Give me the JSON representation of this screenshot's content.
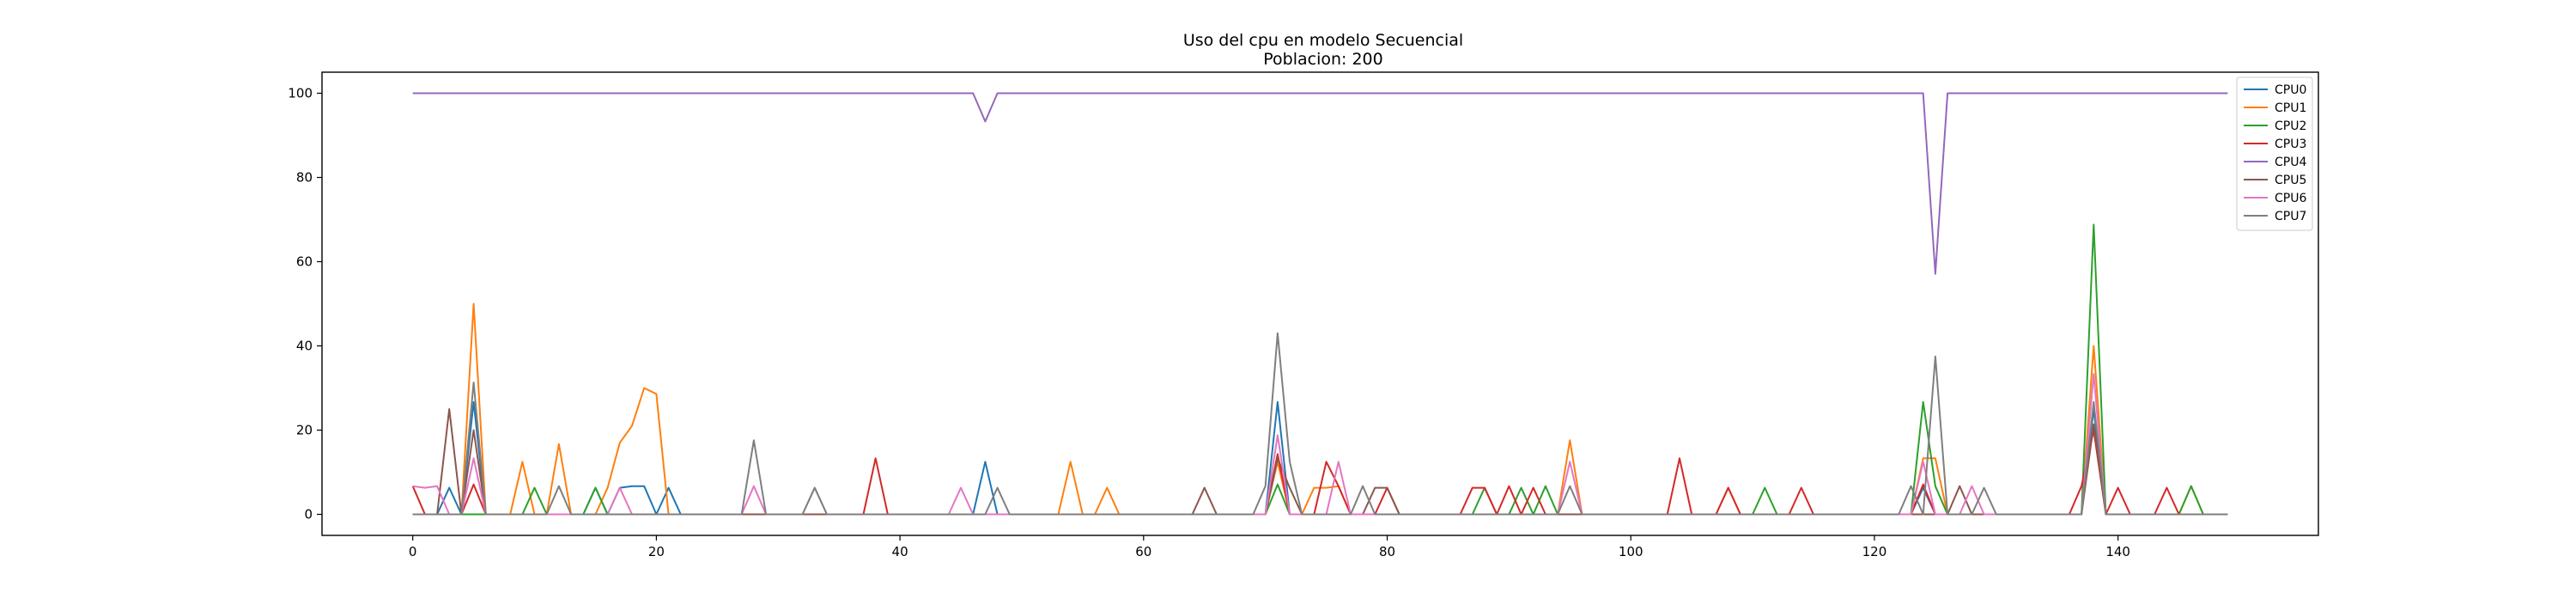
{
  "chart_data": {
    "type": "line",
    "title": "Uso del cpu en modelo Secuencial",
    "subtitle": "Poblacion: 200",
    "xlabel": "",
    "ylabel": "",
    "xlim": [
      -7.45,
      156.45
    ],
    "ylim": [
      -5,
      105
    ],
    "xticks": [
      0,
      20,
      40,
      60,
      80,
      100,
      120,
      140
    ],
    "yticks": [
      0,
      20,
      40,
      60,
      80,
      100
    ],
    "grid": false,
    "legend_position": "top-right",
    "colors": [
      "#1f77b4",
      "#ff7f0e",
      "#2ca02c",
      "#d62728",
      "#9467bd",
      "#8c564b",
      "#e377c2",
      "#7f7f7f"
    ],
    "series": [
      {
        "name": "CPU0",
        "points": [
          [
            0,
            0
          ],
          [
            2,
            0
          ],
          [
            3,
            6.3
          ],
          [
            4,
            0
          ],
          [
            5,
            26.7
          ],
          [
            6,
            0
          ],
          [
            14,
            0
          ],
          [
            15,
            6.3
          ],
          [
            16,
            0
          ],
          [
            17,
            6.3
          ],
          [
            18,
            6.7
          ],
          [
            19,
            6.7
          ],
          [
            20,
            0
          ],
          [
            21,
            6.3
          ],
          [
            22,
            0
          ],
          [
            46,
            0
          ],
          [
            47,
            12.5
          ],
          [
            48,
            0
          ],
          [
            70,
            0
          ],
          [
            71,
            26.7
          ],
          [
            72,
            0
          ],
          [
            123,
            0
          ],
          [
            124,
            6.3
          ],
          [
            125,
            0
          ],
          [
            137,
            0
          ],
          [
            138,
            25
          ],
          [
            139,
            0
          ],
          [
            149,
            0
          ]
        ]
      },
      {
        "name": "CPU1",
        "points": [
          [
            0,
            0
          ],
          [
            4,
            0
          ],
          [
            5,
            50
          ],
          [
            6,
            0
          ],
          [
            8,
            0
          ],
          [
            9,
            12.5
          ],
          [
            10,
            0
          ],
          [
            11,
            0
          ],
          [
            12,
            16.7
          ],
          [
            13,
            0
          ],
          [
            15,
            0
          ],
          [
            16,
            6.3
          ],
          [
            17,
            17
          ],
          [
            18,
            21
          ],
          [
            19,
            30
          ],
          [
            20,
            28.6
          ],
          [
            21,
            0
          ],
          [
            53,
            0
          ],
          [
            54,
            12.5
          ],
          [
            55,
            0
          ],
          [
            56,
            0
          ],
          [
            57,
            6.3
          ],
          [
            58,
            0
          ],
          [
            70,
            0
          ],
          [
            71,
            12.5
          ],
          [
            72,
            0
          ],
          [
            73,
            0
          ],
          [
            74,
            6.3
          ],
          [
            75,
            6.3
          ],
          [
            76,
            6.7
          ],
          [
            77,
            0
          ],
          [
            94,
            0
          ],
          [
            95,
            17.6
          ],
          [
            96,
            0
          ],
          [
            107,
            0
          ],
          [
            108,
            6.3
          ],
          [
            109,
            0
          ],
          [
            123,
            0
          ],
          [
            124,
            13.3
          ],
          [
            125,
            13.3
          ],
          [
            126,
            0
          ],
          [
            137,
            0
          ],
          [
            138,
            40
          ],
          [
            139,
            0
          ],
          [
            145,
            0
          ],
          [
            146,
            6.7
          ],
          [
            147,
            0
          ],
          [
            149,
            0
          ]
        ]
      },
      {
        "name": "CPU2",
        "points": [
          [
            0,
            0
          ],
          [
            9,
            0
          ],
          [
            10,
            6.3
          ],
          [
            11,
            0
          ],
          [
            14,
            0
          ],
          [
            15,
            6.3
          ],
          [
            16,
            0
          ],
          [
            70,
            0
          ],
          [
            71,
            7.1
          ],
          [
            72,
            0
          ],
          [
            87,
            0
          ],
          [
            88,
            6.3
          ],
          [
            89,
            0
          ],
          [
            90,
            0
          ],
          [
            91,
            6.3
          ],
          [
            92,
            0
          ],
          [
            93,
            6.7
          ],
          [
            94,
            0
          ],
          [
            110,
            0
          ],
          [
            111,
            6.3
          ],
          [
            112,
            0
          ],
          [
            123,
            0
          ],
          [
            124,
            26.7
          ],
          [
            125,
            6.7
          ],
          [
            126,
            0
          ],
          [
            137,
            0
          ],
          [
            138,
            68.8
          ],
          [
            139,
            0
          ],
          [
            145,
            0
          ],
          [
            146,
            6.7
          ],
          [
            147,
            0
          ],
          [
            149,
            0
          ]
        ]
      },
      {
        "name": "CPU3",
        "points": [
          [
            0,
            6.7
          ],
          [
            1,
            0
          ],
          [
            4,
            0
          ],
          [
            5,
            7.1
          ],
          [
            6,
            0
          ],
          [
            37,
            0
          ],
          [
            38,
            13.3
          ],
          [
            39,
            0
          ],
          [
            70,
            0
          ],
          [
            71,
            14.3
          ],
          [
            72,
            0
          ],
          [
            74,
            0
          ],
          [
            75,
            12.5
          ],
          [
            76,
            6.7
          ],
          [
            77,
            0
          ],
          [
            79,
            0
          ],
          [
            80,
            6.3
          ],
          [
            81,
            0
          ],
          [
            86,
            0
          ],
          [
            87,
            6.3
          ],
          [
            88,
            6.3
          ],
          [
            89,
            0
          ],
          [
            90,
            6.7
          ],
          [
            91,
            0
          ],
          [
            92,
            6.3
          ],
          [
            93,
            0
          ],
          [
            103,
            0
          ],
          [
            104,
            13.3
          ],
          [
            105,
            0
          ],
          [
            107,
            0
          ],
          [
            108,
            6.3
          ],
          [
            109,
            0
          ],
          [
            113,
            0
          ],
          [
            114,
            6.3
          ],
          [
            115,
            0
          ],
          [
            123,
            0
          ],
          [
            124,
            7.1
          ],
          [
            125,
            0
          ],
          [
            136,
            0
          ],
          [
            137,
            6.7
          ],
          [
            138,
            20
          ],
          [
            139,
            0
          ],
          [
            140,
            6.3
          ],
          [
            141,
            0
          ],
          [
            143,
            0
          ],
          [
            144,
            6.3
          ],
          [
            145,
            0
          ],
          [
            149,
            0
          ]
        ]
      },
      {
        "name": "CPU4",
        "points": [
          [
            0,
            100
          ],
          [
            46,
            100
          ],
          [
            47,
            93.3
          ],
          [
            48,
            100
          ],
          [
            124,
            100
          ],
          [
            125,
            57.1
          ],
          [
            126,
            100
          ],
          [
            149,
            100
          ]
        ]
      },
      {
        "name": "CPU5",
        "points": [
          [
            0,
            0
          ],
          [
            2,
            0
          ],
          [
            3,
            25
          ],
          [
            4,
            0
          ],
          [
            5,
            20
          ],
          [
            6,
            0
          ],
          [
            64,
            0
          ],
          [
            65,
            6.3
          ],
          [
            66,
            0
          ],
          [
            70,
            0
          ],
          [
            71,
            13.3
          ],
          [
            72,
            6.3
          ],
          [
            73,
            0
          ],
          [
            78,
            0
          ],
          [
            79,
            6.3
          ],
          [
            80,
            6.3
          ],
          [
            81,
            0
          ],
          [
            126,
            0
          ],
          [
            127,
            6.7
          ],
          [
            128,
            0
          ],
          [
            137,
            0
          ],
          [
            138,
            21.4
          ],
          [
            139,
            0
          ],
          [
            149,
            0
          ]
        ]
      },
      {
        "name": "CPU6",
        "points": [
          [
            0,
            6.7
          ],
          [
            1,
            6.3
          ],
          [
            2,
            6.7
          ],
          [
            3,
            0
          ],
          [
            4,
            0
          ],
          [
            5,
            13.3
          ],
          [
            6,
            0
          ],
          [
            16,
            0
          ],
          [
            17,
            6.3
          ],
          [
            18,
            0
          ],
          [
            27,
            0
          ],
          [
            28,
            6.7
          ],
          [
            29,
            0
          ],
          [
            32,
            0
          ],
          [
            33,
            6.3
          ],
          [
            34,
            0
          ],
          [
            44,
            0
          ],
          [
            45,
            6.3
          ],
          [
            46,
            0
          ],
          [
            70,
            0
          ],
          [
            71,
            18.8
          ],
          [
            72,
            0
          ],
          [
            75,
            0
          ],
          [
            76,
            12.5
          ],
          [
            77,
            0
          ],
          [
            94,
            0
          ],
          [
            95,
            12.5
          ],
          [
            96,
            0
          ],
          [
            123,
            0
          ],
          [
            124,
            12.5
          ],
          [
            125,
            0
          ],
          [
            127,
            0
          ],
          [
            128,
            6.7
          ],
          [
            129,
            0
          ],
          [
            137,
            0
          ],
          [
            138,
            33.3
          ],
          [
            139,
            0
          ],
          [
            149,
            0
          ]
        ]
      },
      {
        "name": "CPU7",
        "points": [
          [
            0,
            0
          ],
          [
            4,
            0
          ],
          [
            5,
            31.3
          ],
          [
            6,
            0
          ],
          [
            11,
            0
          ],
          [
            12,
            6.7
          ],
          [
            13,
            0
          ],
          [
            27,
            0
          ],
          [
            28,
            17.6
          ],
          [
            29,
            0
          ],
          [
            32,
            0
          ],
          [
            33,
            6.3
          ],
          [
            34,
            0
          ],
          [
            47,
            0
          ],
          [
            48,
            6.3
          ],
          [
            49,
            0
          ],
          [
            69,
            0
          ],
          [
            70,
            6.7
          ],
          [
            71,
            43
          ],
          [
            72,
            12.5
          ],
          [
            73,
            0
          ],
          [
            77,
            0
          ],
          [
            78,
            6.7
          ],
          [
            79,
            0
          ],
          [
            94,
            0
          ],
          [
            95,
            6.7
          ],
          [
            96,
            0
          ],
          [
            122,
            0
          ],
          [
            123,
            6.7
          ],
          [
            124,
            0
          ],
          [
            125,
            37.5
          ],
          [
            126,
            0
          ],
          [
            128,
            0
          ],
          [
            129,
            6.3
          ],
          [
            130,
            0
          ],
          [
            137,
            0
          ],
          [
            138,
            26.7
          ],
          [
            139,
            0
          ],
          [
            149,
            0
          ]
        ]
      }
    ]
  }
}
